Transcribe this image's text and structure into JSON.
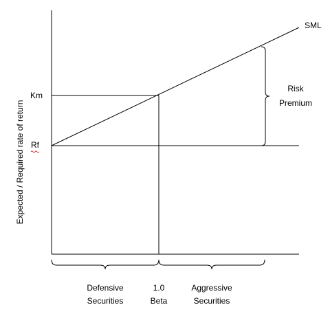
{
  "diagram": {
    "y_axis_label": "Expected / Required rate of return",
    "labels": {
      "km": "Km",
      "rf": "Rf",
      "sml": "SML"
    },
    "risk_premium": {
      "line1": "Risk",
      "line2": "Premium"
    },
    "bottom": {
      "defensive": {
        "line1": "Defensive",
        "line2": "Securities"
      },
      "beta": {
        "line1": "1.0",
        "line2": "Beta"
      },
      "aggressive": {
        "line1": "Aggressive",
        "line2": "Securities"
      }
    }
  }
}
